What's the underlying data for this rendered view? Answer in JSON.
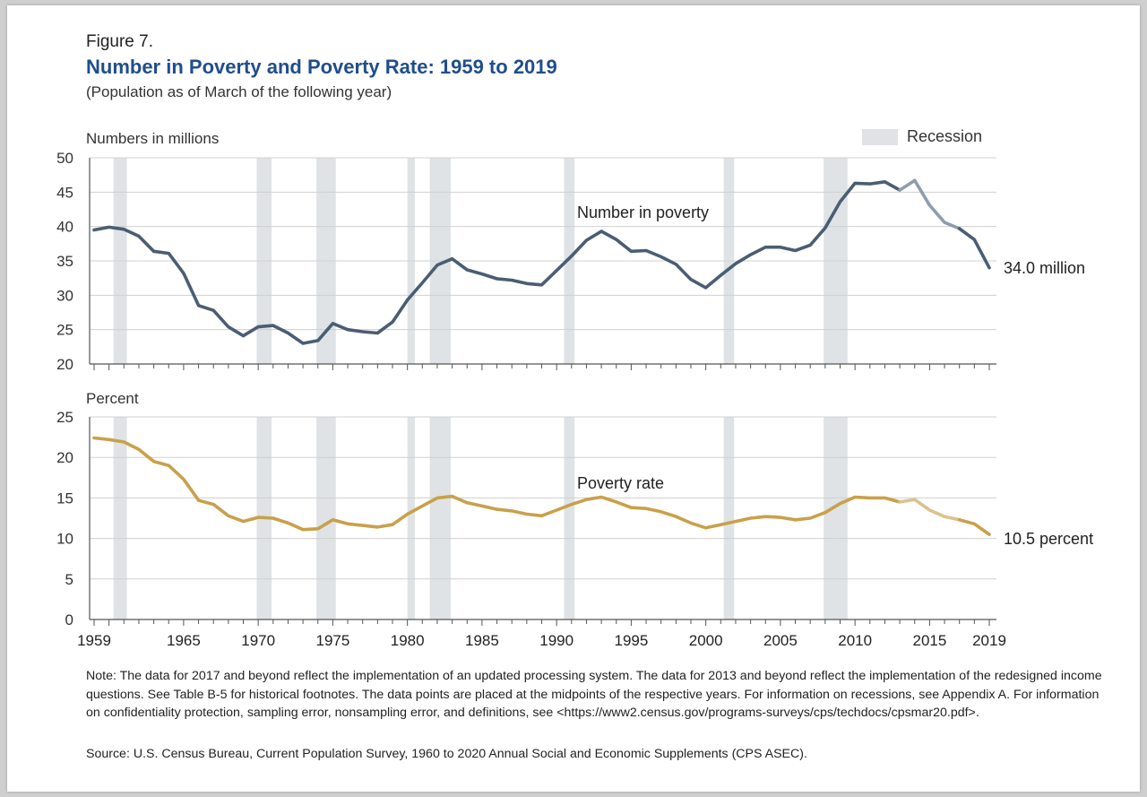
{
  "header": {
    "figure_label": "Figure 7.",
    "title": "Number in Poverty and Poverty Rate: 1959 to 2019",
    "subtitle": "(Population as of March of the following year)"
  },
  "colors": {
    "number_line": "#4a5d73",
    "number_line_light": "#8e9dae",
    "rate_line": "#c9a04a",
    "rate_line_dark": "#a5822f",
    "rate_line_light": "#dbc38c",
    "recession": "#dfe3e6",
    "title": "#1f4e8c"
  },
  "legend": {
    "label": "Recession",
    "placement": "top-right"
  },
  "chart_data": [
    {
      "type": "line",
      "panel": "top",
      "ylabel": "Numbers in millions",
      "ylim": [
        0,
        50
      ],
      "ylim_displayed": [
        20,
        50
      ],
      "yticks": [
        20,
        25,
        30,
        35,
        40,
        45,
        50
      ],
      "grid": true,
      "series_label": "Number in poverty",
      "end_label": "34.0 million",
      "x": [
        1959,
        1960,
        1961,
        1962,
        1963,
        1964,
        1965,
        1966,
        1967,
        1968,
        1969,
        1970,
        1971,
        1972,
        1973,
        1974,
        1975,
        1976,
        1977,
        1978,
        1979,
        1980,
        1981,
        1982,
        1983,
        1984,
        1985,
        1986,
        1987,
        1988,
        1989,
        1990,
        1991,
        1992,
        1993,
        1994,
        1995,
        1996,
        1997,
        1998,
        1999,
        2000,
        2001,
        2002,
        2003,
        2004,
        2005,
        2006,
        2007,
        2008,
        2009,
        2010,
        2011,
        2012,
        2013,
        2014,
        2015,
        2016,
        2017,
        2018,
        2019
      ],
      "values": [
        39.5,
        39.9,
        39.6,
        38.6,
        36.4,
        36.1,
        33.2,
        28.5,
        27.8,
        25.4,
        24.1,
        25.4,
        25.6,
        24.5,
        23.0,
        23.4,
        25.9,
        25.0,
        24.7,
        24.5,
        26.1,
        29.3,
        31.8,
        34.4,
        35.3,
        33.7,
        33.1,
        32.4,
        32.2,
        31.7,
        31.5,
        33.6,
        35.7,
        38.0,
        39.3,
        38.1,
        36.4,
        36.5,
        35.6,
        34.5,
        32.3,
        31.1,
        32.9,
        34.6,
        35.9,
        37.0,
        37.0,
        36.5,
        37.3,
        39.8,
        43.6,
        46.3,
        46.2,
        46.5,
        45.3,
        46.7,
        43.1,
        40.6,
        39.7,
        38.1,
        34.0
      ],
      "segments": [
        {
          "from": 1959,
          "to": 2013,
          "style": "dark"
        },
        {
          "from": 2013,
          "to": 2017,
          "style": "light"
        },
        {
          "from": 2017,
          "to": 2019,
          "style": "dark"
        }
      ]
    },
    {
      "type": "line",
      "panel": "bottom",
      "ylabel": "Percent",
      "ylim": [
        0,
        25
      ],
      "yticks": [
        0,
        5,
        10,
        15,
        20,
        25
      ],
      "grid": true,
      "series_label": "Poverty rate",
      "end_label": "10.5 percent",
      "x": [
        1959,
        1960,
        1961,
        1962,
        1963,
        1964,
        1965,
        1966,
        1967,
        1968,
        1969,
        1970,
        1971,
        1972,
        1973,
        1974,
        1975,
        1976,
        1977,
        1978,
        1979,
        1980,
        1981,
        1982,
        1983,
        1984,
        1985,
        1986,
        1987,
        1988,
        1989,
        1990,
        1991,
        1992,
        1993,
        1994,
        1995,
        1996,
        1997,
        1998,
        1999,
        2000,
        2001,
        2002,
        2003,
        2004,
        2005,
        2006,
        2007,
        2008,
        2009,
        2010,
        2011,
        2012,
        2013,
        2014,
        2015,
        2016,
        2017,
        2018,
        2019
      ],
      "values": [
        22.4,
        22.2,
        21.9,
        21.0,
        19.5,
        19.0,
        17.3,
        14.7,
        14.2,
        12.8,
        12.1,
        12.6,
        12.5,
        11.9,
        11.1,
        11.2,
        12.3,
        11.8,
        11.6,
        11.4,
        11.7,
        13.0,
        14.0,
        15.0,
        15.2,
        14.4,
        14.0,
        13.6,
        13.4,
        13.0,
        12.8,
        13.5,
        14.2,
        14.8,
        15.1,
        14.5,
        13.8,
        13.7,
        13.3,
        12.7,
        11.9,
        11.3,
        11.7,
        12.1,
        12.5,
        12.7,
        12.6,
        12.3,
        12.5,
        13.2,
        14.3,
        15.1,
        15.0,
        15.0,
        14.5,
        14.8,
        13.5,
        12.7,
        12.3,
        11.8,
        10.5
      ],
      "segments": [
        {
          "from": 1959,
          "to": 2013,
          "style": "dark"
        },
        {
          "from": 2013,
          "to": 2017,
          "style": "light"
        },
        {
          "from": 2017,
          "to": 2019,
          "style": "dark"
        }
      ]
    }
  ],
  "x_axis": {
    "range": [
      1959,
      2019
    ],
    "tick_labels": [
      "1959",
      "1965",
      "1970",
      "1975",
      "1980",
      "1985",
      "1990",
      "1995",
      "2000",
      "2005",
      "2010",
      "2015",
      "2019"
    ]
  },
  "recessions": [
    [
      1960.3,
      1961.2
    ],
    [
      1969.9,
      1970.9
    ],
    [
      1973.9,
      1975.2
    ],
    [
      1980.0,
      1980.5
    ],
    [
      1981.5,
      1982.9
    ],
    [
      1990.5,
      1991.2
    ],
    [
      2001.2,
      2001.9
    ],
    [
      2007.9,
      2009.5
    ]
  ],
  "footer": {
    "note": "Note: The data for 2017 and beyond reflect the implementation of an updated processing system. The data for 2013 and beyond reflect the implementation of the redesigned income questions. See Table B-5 for historical footnotes. The data points are placed at the midpoints of the respective years. For information on recessions, see Appendix A. For information on confidentiality protection, sampling error, nonsampling error, and definitions, see <https://www2.census.gov/programs-surveys/cps/techdocs/cpsmar20.pdf>.",
    "source": "Source: U.S. Census Bureau, Current Population Survey, 1960 to 2020 Annual Social and Economic Supplements (CPS ASEC)."
  }
}
